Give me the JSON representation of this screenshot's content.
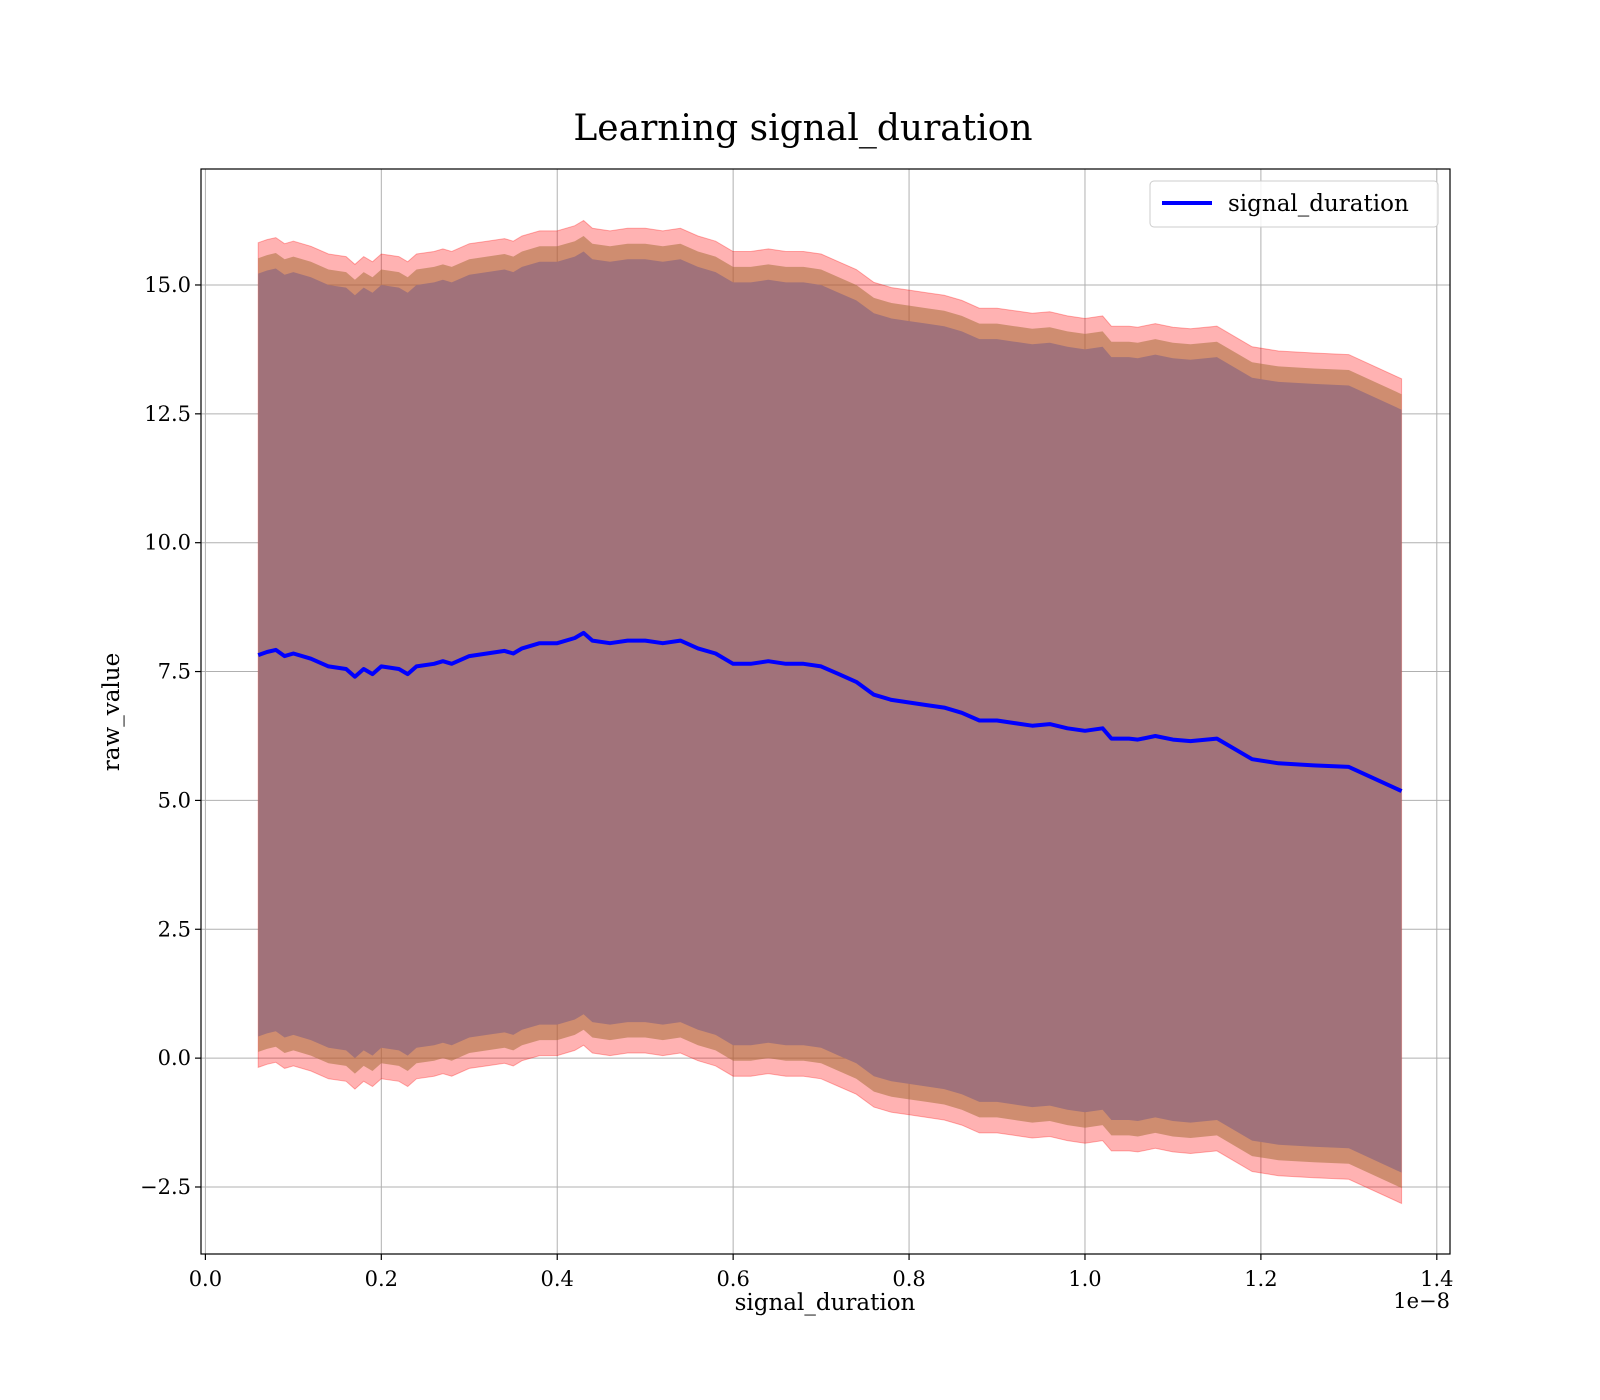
{
  "chart_data": {
    "type": "line",
    "title": "Learning signal_duration",
    "xlabel": "signal_duration",
    "ylabel": "raw_value",
    "x_offset_label": "1e−8",
    "xlim": [
      -0.005,
      1.415
    ],
    "ylim": [
      -3.8,
      17.25
    ],
    "x_ticks": [
      0.0,
      0.2,
      0.4,
      0.6,
      0.8,
      1.0,
      1.2,
      1.4
    ],
    "x_tick_labels": [
      "0.0",
      "0.2",
      "0.4",
      "0.6",
      "0.8",
      "1.0",
      "1.2",
      "1.4"
    ],
    "y_ticks": [
      -2.5,
      0.0,
      2.5,
      5.0,
      7.5,
      10.0,
      12.5,
      15.0
    ],
    "y_tick_labels": [
      "−2.5",
      "0.0",
      "2.5",
      "5.0",
      "7.5",
      "10.0",
      "12.5",
      "15.0"
    ],
    "grid": true,
    "legend": {
      "position": "top-right",
      "entries": [
        "signal_duration"
      ]
    },
    "colors": {
      "line": "#0000ff",
      "band": "#ff0000",
      "band_inner": "#6b3a2a"
    },
    "x": [
      0.06,
      0.07,
      0.08,
      0.09,
      0.1,
      0.12,
      0.14,
      0.16,
      0.17,
      0.18,
      0.19,
      0.2,
      0.22,
      0.23,
      0.24,
      0.26,
      0.27,
      0.28,
      0.3,
      0.32,
      0.34,
      0.35,
      0.36,
      0.38,
      0.4,
      0.42,
      0.43,
      0.44,
      0.46,
      0.48,
      0.5,
      0.52,
      0.54,
      0.56,
      0.58,
      0.6,
      0.62,
      0.64,
      0.66,
      0.68,
      0.7,
      0.72,
      0.74,
      0.76,
      0.78,
      0.8,
      0.82,
      0.84,
      0.86,
      0.88,
      0.9,
      0.92,
      0.94,
      0.96,
      0.98,
      1.0,
      1.02,
      1.03,
      1.05,
      1.06,
      1.08,
      1.1,
      1.12,
      1.15,
      1.19,
      1.22,
      1.26,
      1.3,
      1.36
    ],
    "mean": [
      7.82,
      7.88,
      7.92,
      7.8,
      7.85,
      7.75,
      7.6,
      7.55,
      7.4,
      7.55,
      7.45,
      7.6,
      7.55,
      7.45,
      7.6,
      7.65,
      7.7,
      7.65,
      7.8,
      7.85,
      7.9,
      7.85,
      7.95,
      8.05,
      8.05,
      8.15,
      8.25,
      8.1,
      8.05,
      8.1,
      8.1,
      8.05,
      8.1,
      7.95,
      7.85,
      7.65,
      7.65,
      7.7,
      7.65,
      7.65,
      7.6,
      7.45,
      7.3,
      7.05,
      6.95,
      6.9,
      6.85,
      6.8,
      6.7,
      6.55,
      6.55,
      6.5,
      6.45,
      6.48,
      6.4,
      6.35,
      6.4,
      6.2,
      6.2,
      6.18,
      6.25,
      6.18,
      6.15,
      6.2,
      5.8,
      5.72,
      5.68,
      5.65,
      5.18
    ],
    "band_half_width_inner": 7.4,
    "band_half_width_mid": 7.7,
    "band_half_width_outer": 8.0
  }
}
